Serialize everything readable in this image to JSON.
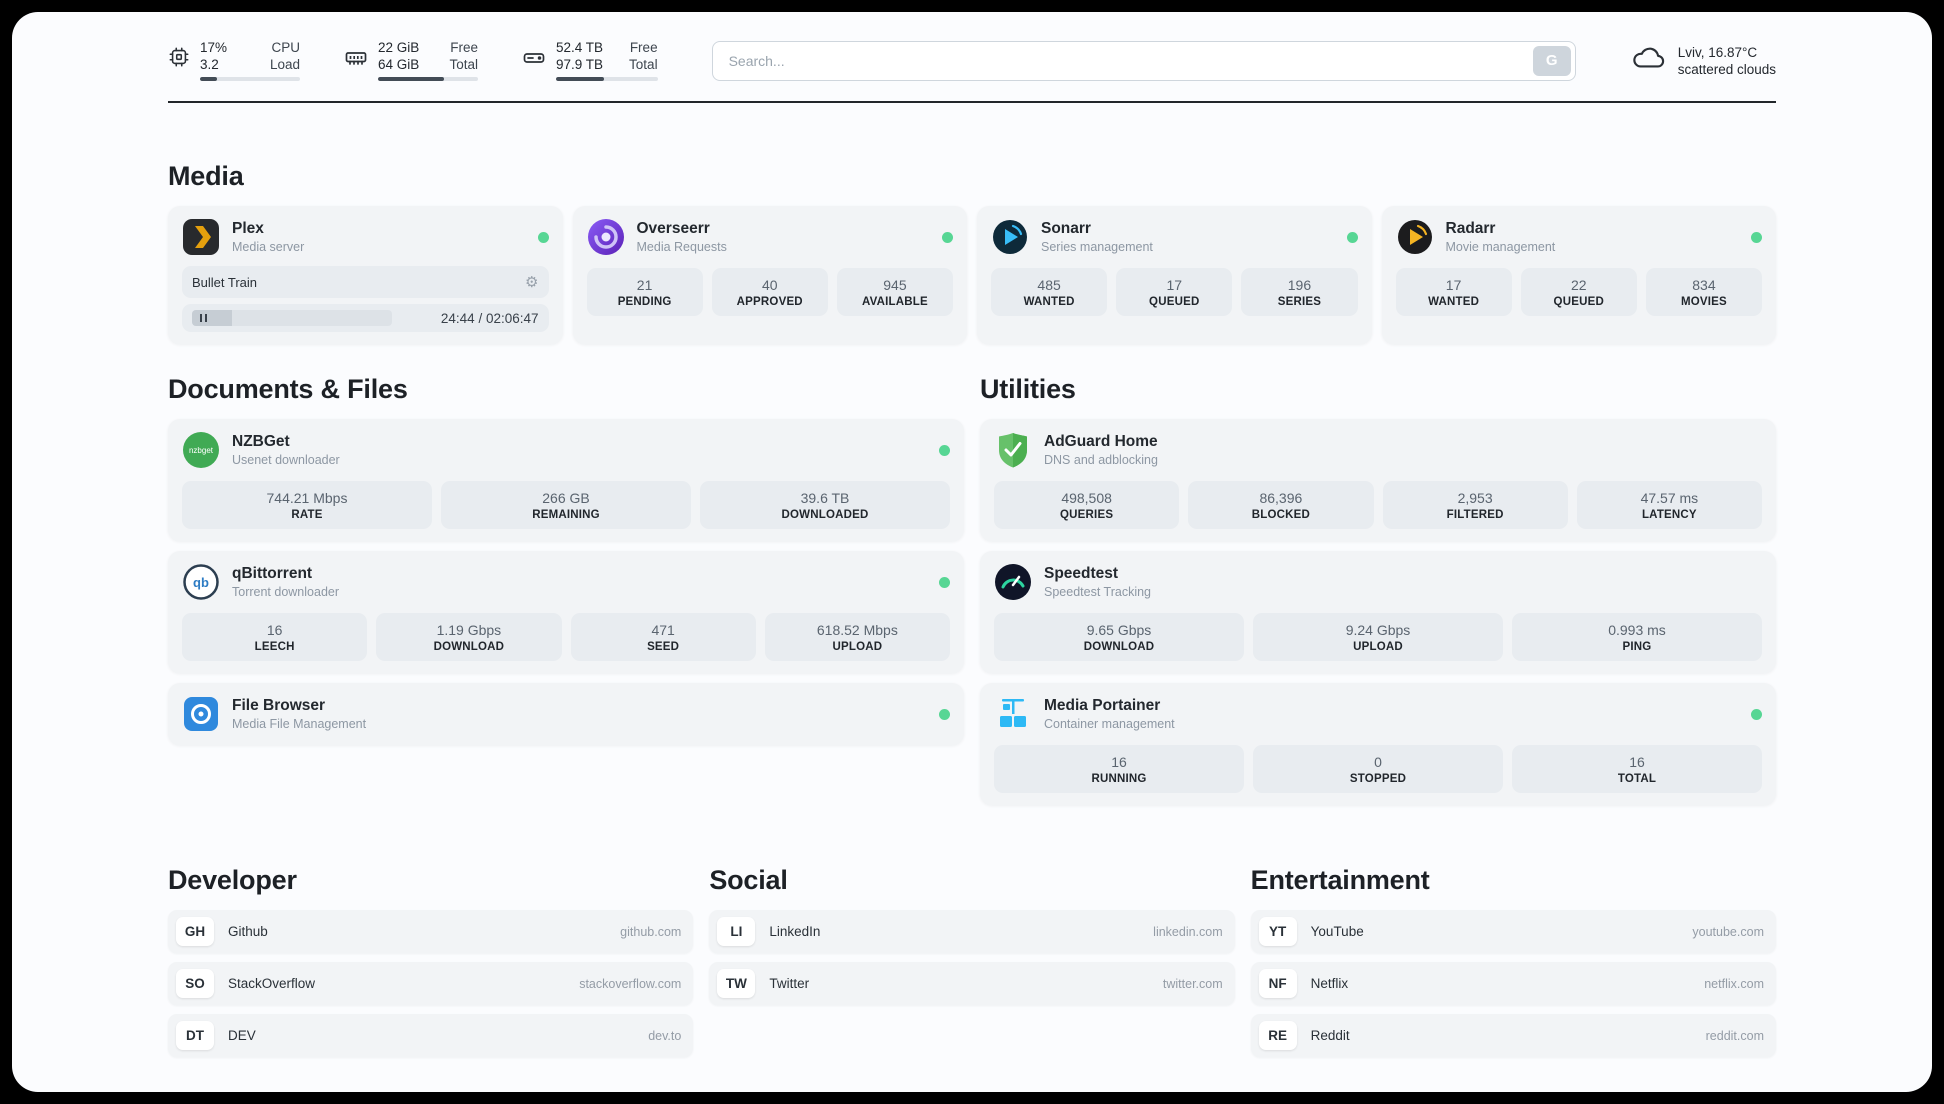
{
  "header": {
    "cpu": {
      "usage": "17%",
      "load": "3.2",
      "label_top": "CPU",
      "label_bottom": "Load",
      "bar_percent": 17
    },
    "memory": {
      "free": "22 GiB",
      "total": "64 GiB",
      "label_top": "Free",
      "label_bottom": "Total",
      "bar_percent": 66
    },
    "storage": {
      "free": "52.4 TB",
      "total": "97.9 TB",
      "label_top": "Free",
      "label_bottom": "Total",
      "bar_percent": 47
    },
    "search": {
      "placeholder": "Search...",
      "engine_label": "G"
    },
    "weather": {
      "location": "Lviv, 16.87°C",
      "condition": "scattered clouds"
    }
  },
  "sections": {
    "media": {
      "title": "Media"
    },
    "documents": {
      "title": "Documents & Files"
    },
    "utilities": {
      "title": "Utilities"
    },
    "developer": {
      "title": "Developer"
    },
    "social": {
      "title": "Social"
    },
    "entertainment": {
      "title": "Entertainment"
    }
  },
  "apps": {
    "plex": {
      "name": "Plex",
      "subtitle": "Media server",
      "now_playing": "Bullet Train",
      "elapsed_total": "24:44 / 02:06:47",
      "progress_percent": 20
    },
    "overseerr": {
      "name": "Overseerr",
      "subtitle": "Media Requests",
      "stats": [
        {
          "value": "21",
          "label": "PENDING"
        },
        {
          "value": "40",
          "label": "APPROVED"
        },
        {
          "value": "945",
          "label": "AVAILABLE"
        }
      ]
    },
    "sonarr": {
      "name": "Sonarr",
      "subtitle": "Series management",
      "stats": [
        {
          "value": "485",
          "label": "WANTED"
        },
        {
          "value": "17",
          "label": "QUEUED"
        },
        {
          "value": "196",
          "label": "SERIES"
        }
      ]
    },
    "radarr": {
      "name": "Radarr",
      "subtitle": "Movie management",
      "stats": [
        {
          "value": "17",
          "label": "WANTED"
        },
        {
          "value": "22",
          "label": "QUEUED"
        },
        {
          "value": "834",
          "label": "MOVIES"
        }
      ]
    },
    "nzbget": {
      "name": "NZBGet",
      "subtitle": "Usenet downloader",
      "icon_text": "nzbget",
      "stats": [
        {
          "value": "744.21 Mbps",
          "label": "RATE"
        },
        {
          "value": "266 GB",
          "label": "REMAINING"
        },
        {
          "value": "39.6 TB",
          "label": "DOWNLOADED"
        }
      ]
    },
    "qbittorrent": {
      "name": "qBittorrent",
      "subtitle": "Torrent downloader",
      "icon_text": "qb",
      "stats": [
        {
          "value": "16",
          "label": "LEECH"
        },
        {
          "value": "1.19 Gbps",
          "label": "DOWNLOAD"
        },
        {
          "value": "471",
          "label": "SEED"
        },
        {
          "value": "618.52 Mbps",
          "label": "UPLOAD"
        }
      ]
    },
    "filebrowser": {
      "name": "File Browser",
      "subtitle": "Media File Management"
    },
    "adguard": {
      "name": "AdGuard Home",
      "subtitle": "DNS and adblocking",
      "stats": [
        {
          "value": "498,508",
          "label": "QUERIES"
        },
        {
          "value": "86,396",
          "label": "BLOCKED"
        },
        {
          "value": "2,953",
          "label": "FILTERED"
        },
        {
          "value": "47.57 ms",
          "label": "LATENCY"
        }
      ]
    },
    "speedtest": {
      "name": "Speedtest",
      "subtitle": "Speedtest Tracking",
      "stats": [
        {
          "value": "9.65 Gbps",
          "label": "DOWNLOAD"
        },
        {
          "value": "9.24 Gbps",
          "label": "UPLOAD"
        },
        {
          "value": "0.993 ms",
          "label": "PING"
        }
      ]
    },
    "portainer": {
      "name": "Media Portainer",
      "subtitle": "Container management",
      "stats": [
        {
          "value": "16",
          "label": "RUNNING"
        },
        {
          "value": "0",
          "label": "STOPPED"
        },
        {
          "value": "16",
          "label": "TOTAL"
        }
      ]
    }
  },
  "bookmarks": {
    "developer": [
      {
        "abbr": "GH",
        "name": "Github",
        "url": "github.com"
      },
      {
        "abbr": "SO",
        "name": "StackOverflow",
        "url": "stackoverflow.com"
      },
      {
        "abbr": "DT",
        "name": "DEV",
        "url": "dev.to"
      }
    ],
    "social": [
      {
        "abbr": "LI",
        "name": "LinkedIn",
        "url": "linkedin.com"
      },
      {
        "abbr": "TW",
        "name": "Twitter",
        "url": "twitter.com"
      }
    ],
    "entertainment": [
      {
        "abbr": "YT",
        "name": "YouTube",
        "url": "youtube.com"
      },
      {
        "abbr": "NF",
        "name": "Netflix",
        "url": "netflix.com"
      },
      {
        "abbr": "RE",
        "name": "Reddit",
        "url": "reddit.com"
      }
    ]
  },
  "colors": {
    "status_online": "#57d694",
    "page_background": "#fbfcfe",
    "card_background": "#f2f4f6",
    "tile_background": "#e8ecf0"
  }
}
